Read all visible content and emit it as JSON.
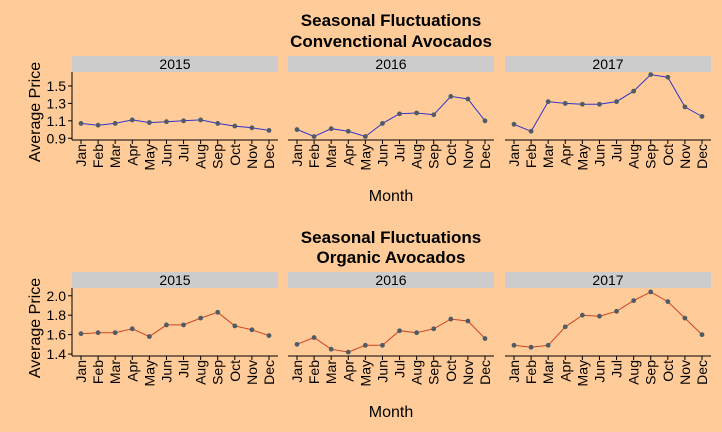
{
  "colors": {
    "background": "#FFCC99",
    "strip": "#CCCCCC",
    "point": "#4F5B66",
    "axis": "#000000",
    "line_conventional": "#3333CC",
    "line_organic": "#CC4422"
  },
  "chart_data": [
    {
      "type": "line",
      "title": "Seasonal Fluctuations\nConvenctional Avocados",
      "title_lines": [
        "Seasonal Fluctuations",
        "Convenctional Avocados"
      ],
      "xlabel": "Month",
      "ylabel": "Average Price",
      "yticks": [
        "0.9",
        "1.1",
        "1.3",
        "1.5"
      ],
      "ylim": [
        0.88,
        1.66
      ],
      "grid": false,
      "line_color_key": "line_conventional",
      "categories": [
        "Jan",
        "Feb",
        "Mar",
        "Apr",
        "May",
        "Jun",
        "Jul",
        "Aug",
        "Sep",
        "Oct",
        "Nov",
        "Dec"
      ],
      "panels": [
        {
          "name": "2015",
          "values": [
            1.07,
            1.05,
            1.07,
            1.11,
            1.08,
            1.09,
            1.1,
            1.11,
            1.07,
            1.04,
            1.02,
            0.99
          ]
        },
        {
          "name": "2016",
          "values": [
            1.0,
            0.92,
            1.01,
            0.98,
            0.92,
            1.07,
            1.18,
            1.19,
            1.17,
            1.38,
            1.35,
            1.1
          ]
        },
        {
          "name": "2017",
          "values": [
            1.06,
            0.98,
            1.32,
            1.3,
            1.29,
            1.29,
            1.32,
            1.44,
            1.63,
            1.6,
            1.26,
            1.15
          ]
        }
      ]
    },
    {
      "type": "line",
      "title": "Seasonal Fluctuations\nOrganic Avocados",
      "title_lines": [
        "Seasonal Fluctuations",
        "Organic Avocados"
      ],
      "xlabel": "Month",
      "ylabel": "Average Price",
      "yticks": [
        "1.4",
        "1.6",
        "1.8",
        "2.0"
      ],
      "ylim": [
        1.38,
        2.08
      ],
      "grid": false,
      "line_color_key": "line_organic",
      "categories": [
        "Jan",
        "Feb",
        "Mar",
        "Apr",
        "May",
        "Jun",
        "Jul",
        "Aug",
        "Sep",
        "Oct",
        "Nov",
        "Dec"
      ],
      "panels": [
        {
          "name": "2015",
          "values": [
            1.61,
            1.62,
            1.62,
            1.66,
            1.58,
            1.7,
            1.7,
            1.77,
            1.83,
            1.69,
            1.65,
            1.59
          ]
        },
        {
          "name": "2016",
          "values": [
            1.5,
            1.57,
            1.45,
            1.42,
            1.49,
            1.49,
            1.64,
            1.62,
            1.66,
            1.76,
            1.74,
            1.56
          ]
        },
        {
          "name": "2017",
          "values": [
            1.49,
            1.47,
            1.49,
            1.68,
            1.8,
            1.79,
            1.84,
            1.95,
            2.04,
            1.94,
            1.77,
            1.6
          ]
        }
      ]
    }
  ]
}
